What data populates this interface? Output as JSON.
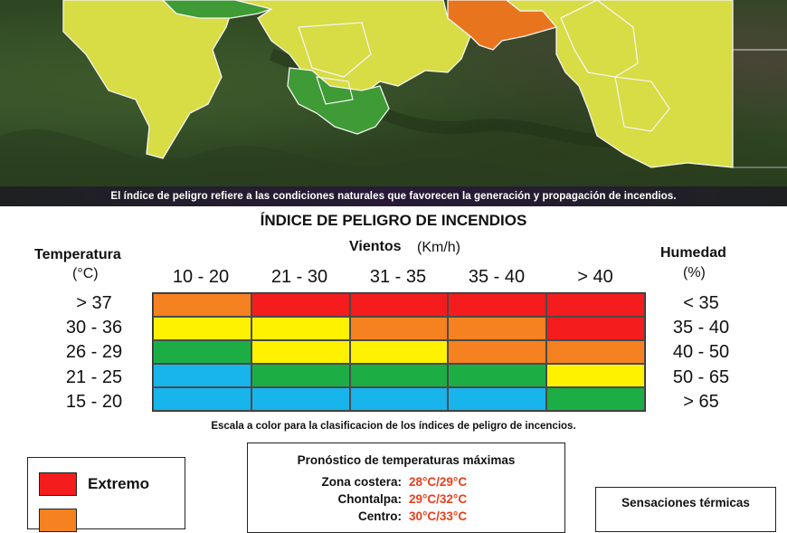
{
  "map": {
    "caption": "El índice de peligro refiere a las condiciones naturales que favorecen la generación y propagación de incendios.",
    "colors": {
      "high": "#e8741e",
      "moderate": "#d8dc45",
      "low": "#3f9b35"
    }
  },
  "index_table": {
    "title": "ÍNDICE DE PELIGRO DE INCENDIOS",
    "temperature": {
      "title": "Temperatura",
      "unit": "(°C)",
      "rows": [
        "> 37",
        "30 - 36",
        "26 - 29",
        "21 - 25",
        "15 - 20"
      ]
    },
    "wind": {
      "title": "Vientos",
      "unit": "(Km/h)",
      "columns": [
        "10 - 20",
        "21 - 30",
        "31 - 35",
        "35 - 40",
        "> 40"
      ]
    },
    "humidity": {
      "title": "Humedad",
      "unit": "(%)",
      "rows": [
        "< 35",
        "35 - 40",
        "40 - 50",
        "50 - 65",
        "> 65"
      ]
    },
    "grid_colors": [
      [
        "#f68120",
        "#f41c1c",
        "#f41c1c",
        "#f41c1c",
        "#f41c1c"
      ],
      [
        "#fff200",
        "#fff200",
        "#f68120",
        "#f68120",
        "#f41c1c"
      ],
      [
        "#1cae45",
        "#fff200",
        "#fff200",
        "#f68120",
        "#f68120"
      ],
      [
        "#18b4ec",
        "#1cae45",
        "#1cae45",
        "#1cae45",
        "#fff200"
      ],
      [
        "#18b4ec",
        "#18b4ec",
        "#18b4ec",
        "#18b4ec",
        "#1cae45"
      ]
    ],
    "caption": "Escala a color para la clasificacion de los índices de peligro de incencios."
  },
  "legend": {
    "items": [
      {
        "label": "Extremo",
        "color": "#f41c1c"
      },
      {
        "label": "",
        "color": "#f68120"
      }
    ]
  },
  "forecast": {
    "title": "Pronóstico de temperaturas máximas",
    "rows": [
      {
        "zone": "Zona costera:",
        "value": "28°C/29°C"
      },
      {
        "zone": "Chontalpa:",
        "value": "29°C/32°C"
      },
      {
        "zone": "Centro:",
        "value": "30°C/33°C"
      }
    ]
  },
  "sensations": {
    "title": "Sensaciones térmicas"
  }
}
